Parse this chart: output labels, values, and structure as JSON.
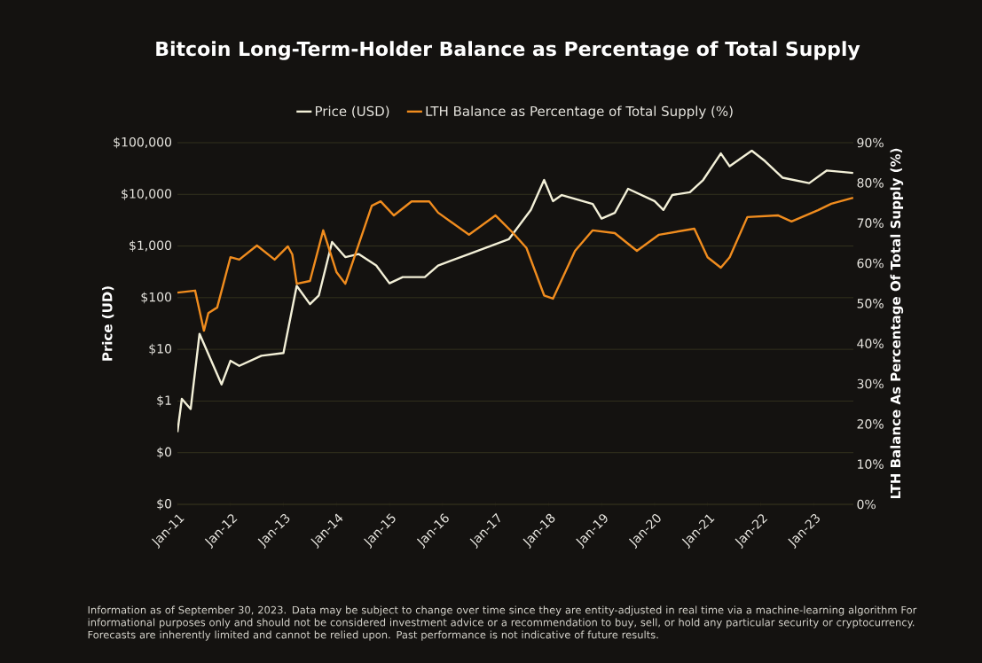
{
  "chart_data": {
    "type": "line",
    "title": "Bitcoin Long-Term-Holder Balance as Percentage of Total Supply",
    "ylabel": "Price (UD)",
    "y2label": "LTH Balance As Percentage Of Total Supply (%)",
    "annotations": [
      "Information as of September 30, 2023. Data may be subject to change over time since they are entity-adjusted in real time via a machine-learning algorithm For informational purposes only and should not be considered investment advice or a recommendation to buy, sell, or hold any particular security or cryptocurrency. Forecasts are inherently limited and cannot be relied upon. Past performance is not indicative of future results."
    ],
    "series": [
      {
        "name": "Price (USD)",
        "color": "#f3f0d8",
        "x": [
          "2011-01",
          "2011-02",
          "2011-04",
          "2011-06",
          "2011-11",
          "2012-01",
          "2012-03",
          "2012-08",
          "2013-01",
          "2013-04",
          "2013-07",
          "2013-09",
          "2013-12",
          "2014-03",
          "2014-06",
          "2014-10",
          "2015-01",
          "2015-04",
          "2015-09",
          "2015-12",
          "2016-07",
          "2017-04",
          "2017-09",
          "2017-12",
          "2018-02",
          "2018-04",
          "2018-11",
          "2019-01",
          "2019-04",
          "2019-07",
          "2020-01",
          "2020-03",
          "2020-05",
          "2020-09",
          "2020-12",
          "2021-04",
          "2021-06",
          "2021-11",
          "2022-02",
          "2022-06",
          "2022-12",
          "2023-04",
          "2023-09-30"
        ],
        "values": [
          0.25,
          1.1,
          0.7,
          20,
          2.1,
          6,
          4.8,
          7.5,
          8.5,
          170,
          75,
          110,
          1200,
          610,
          700,
          420,
          190,
          250,
          250,
          420,
          700,
          1350,
          5000,
          19000,
          7400,
          9700,
          6500,
          3400,
          4400,
          12800,
          7400,
          5000,
          9700,
          11000,
          19000,
          62000,
          35000,
          70000,
          44000,
          21000,
          16500,
          29000,
          26000
        ]
      },
      {
        "name": "LTH Balance as Percentage of Total Supply (%)",
        "color": "#f08c1e",
        "axis": "y2",
        "x": [
          "2011-01",
          "2011-05",
          "2011-07",
          "2011-08",
          "2011-10",
          "2012-01",
          "2012-03",
          "2012-07",
          "2012-11",
          "2013-02",
          "2013-03",
          "2013-04",
          "2013-07",
          "2013-10",
          "2014-01",
          "2014-03",
          "2014-09",
          "2014-11",
          "2015-02",
          "2015-06",
          "2015-10",
          "2015-12",
          "2016-07",
          "2017-01",
          "2017-05",
          "2017-08",
          "2017-12",
          "2018-02",
          "2018-07",
          "2018-11",
          "2019-04",
          "2019-09",
          "2020-02",
          "2020-10",
          "2021-01",
          "2021-04",
          "2021-06",
          "2021-10",
          "2022-05",
          "2022-08",
          "2023-02",
          "2023-05",
          "2023-09-30"
        ],
        "values": [
          52.7,
          53.2,
          43.2,
          47.6,
          49,
          61.5,
          60.9,
          64.4,
          60.9,
          64.2,
          62.2,
          54.9,
          55.6,
          68.2,
          57.8,
          54.9,
          74.3,
          75.4,
          71.9,
          75.4,
          75.4,
          72.6,
          67.1,
          71.9,
          67.5,
          63.8,
          52,
          51.2,
          63.1,
          68.2,
          67.5,
          63.1,
          67.1,
          68.6,
          61.5,
          58.9,
          61.5,
          71.5,
          71.9,
          70.4,
          73.2,
          74.8,
          76.3
        ]
      }
    ],
    "log": "y",
    "grid": "y",
    "legend": "top",
    "xlim": [
      "2011-01",
      "2023-10"
    ],
    "xticks": [
      {
        "value": "2011-01",
        "label": "Jan-11"
      },
      {
        "value": "2012-01",
        "label": "Jan-12"
      },
      {
        "value": "2013-01",
        "label": "Jan-13"
      },
      {
        "value": "2014-01",
        "label": "Jan-14"
      },
      {
        "value": "2015-01",
        "label": "Jan-15"
      },
      {
        "value": "2016-01",
        "label": "Jan-16"
      },
      {
        "value": "2017-01",
        "label": "Jan-17"
      },
      {
        "value": "2018-01",
        "label": "Jan-18"
      },
      {
        "value": "2019-01",
        "label": "Jan-19"
      },
      {
        "value": "2020-01",
        "label": "Jan-20"
      },
      {
        "value": "2021-01",
        "label": "Jan-21"
      },
      {
        "value": "2022-01",
        "label": "Jan-22"
      },
      {
        "value": "2023-01",
        "label": "Jan-23"
      }
    ],
    "ylim": [
      0.01,
      100000
    ],
    "yticks": [
      {
        "value": 0.01,
        "label": "$0"
      },
      {
        "value": 0.1,
        "label": "$0"
      },
      {
        "value": 1,
        "label": "$1"
      },
      {
        "value": 10,
        "label": "$10"
      },
      {
        "value": 100,
        "label": "$100"
      },
      {
        "value": 1000,
        "label": "$1,000"
      },
      {
        "value": 10000,
        "label": "$10,000"
      },
      {
        "value": 100000,
        "label": "$100,000"
      }
    ],
    "y2lim": [
      0,
      90
    ],
    "y2ticks": [
      {
        "value": 0,
        "label": "0%"
      },
      {
        "value": 10,
        "label": "10%"
      },
      {
        "value": 20,
        "label": "20%"
      },
      {
        "value": 30,
        "label": "30%"
      },
      {
        "value": 40,
        "label": "40%"
      },
      {
        "value": 50,
        "label": "50%"
      },
      {
        "value": 60,
        "label": "60%"
      },
      {
        "value": 70,
        "label": "70%"
      },
      {
        "value": 80,
        "label": "80%"
      },
      {
        "value": 90,
        "label": "90%"
      }
    ]
  }
}
